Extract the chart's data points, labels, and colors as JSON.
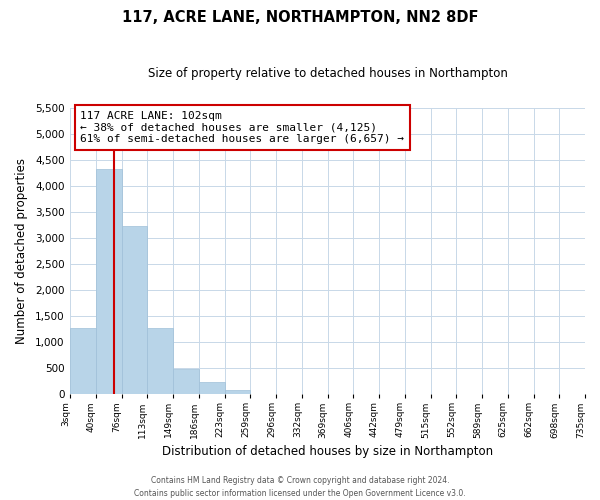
{
  "title": "117, ACRE LANE, NORTHAMPTON, NN2 8DF",
  "subtitle": "Size of property relative to detached houses in Northampton",
  "xlabel": "Distribution of detached houses by size in Northampton",
  "ylabel": "Number of detached properties",
  "bar_color": "#b8d4e8",
  "grid_color": "#c8d8e8",
  "vline_color": "#cc0000",
  "annotation_text": "117 ACRE LANE: 102sqm\n← 38% of detached houses are smaller (4,125)\n61% of semi-detached houses are larger (6,657) →",
  "annotation_box_edgecolor": "#cc0000",
  "annotation_fontsize": 8.0,
  "bins": [
    "3sqm",
    "40sqm",
    "76sqm",
    "113sqm",
    "149sqm",
    "186sqm",
    "223sqm",
    "259sqm",
    "296sqm",
    "332sqm",
    "369sqm",
    "406sqm",
    "442sqm",
    "479sqm",
    "515sqm",
    "552sqm",
    "589sqm",
    "625sqm",
    "662sqm",
    "698sqm",
    "735sqm"
  ],
  "bar_heights": [
    1270,
    4330,
    3240,
    1280,
    480,
    230,
    75,
    0,
    0,
    0,
    0,
    0,
    0,
    0,
    0,
    0,
    0,
    0,
    0,
    0
  ],
  "ylim": [
    0,
    5500
  ],
  "yticks": [
    0,
    500,
    1000,
    1500,
    2000,
    2500,
    3000,
    3500,
    4000,
    4500,
    5000,
    5500
  ],
  "footnote": "Contains HM Land Registry data © Crown copyright and database right 2024.\nContains public sector information licensed under the Open Government Licence v3.0.",
  "bg_color": "#ffffff",
  "fig_width": 6.0,
  "fig_height": 5.0,
  "vline_bin_index": 1.72
}
